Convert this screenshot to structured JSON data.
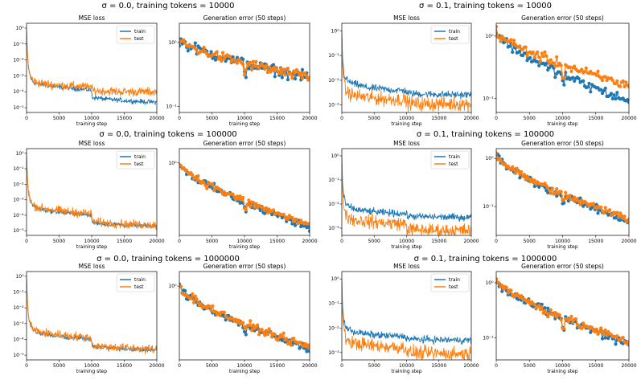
{
  "colors": {
    "train": "#1f77b4",
    "test": "#ff7f0e"
  },
  "chart_data": [
    {
      "type": "line",
      "row": 0,
      "col": 0,
      "group_title": "σ = 0.0, training tokens = 10000",
      "title": "MSE loss",
      "xlabel": "training step",
      "yscale": "log",
      "xlim": [
        0,
        20000
      ],
      "ylim": [
        5e-06,
        2
      ],
      "xticks": [
        0,
        5000,
        10000,
        15000,
        20000
      ],
      "yticks": [
        {
          "v": 1,
          "label": "10⁰"
        },
        {
          "v": 0.1,
          "label": "10⁻¹"
        },
        {
          "v": 0.01,
          "label": "10⁻²"
        },
        {
          "v": 0.001,
          "label": "10⁻³"
        },
        {
          "v": 0.0001,
          "label": "10⁻⁴"
        },
        {
          "v": 1e-05,
          "label": "10⁻⁵"
        }
      ],
      "legend": "top-right",
      "series": [
        {
          "name": "train",
          "x": [
            0,
            100,
            300,
            600,
            1000,
            2000,
            4000,
            6000,
            8000,
            9900,
            10100,
            12000,
            15000,
            18000,
            20000
          ],
          "y": [
            1,
            0.05,
            0.003,
            0.0008,
            0.0004,
            0.0003,
            0.00022,
            0.00018,
            0.00015,
            0.00013,
            4.5e-05,
            3.5e-05,
            2.8e-05,
            2.4e-05,
            2.2e-05
          ]
        },
        {
          "name": "test",
          "x": [
            0,
            100,
            300,
            600,
            1000,
            2000,
            4000,
            6000,
            8000,
            9900,
            10100,
            12000,
            15000,
            18000,
            20000
          ],
          "y": [
            1,
            0.05,
            0.003,
            0.0009,
            0.0005,
            0.00035,
            0.00028,
            0.00024,
            0.00022,
            0.0002,
            0.00012,
            0.00011,
            0.0001,
            0.0001,
            0.0001
          ]
        }
      ]
    },
    {
      "type": "line",
      "row": 0,
      "col": 1,
      "title": "Generation error (50 steps)",
      "xlabel": "training step",
      "yscale": "log",
      "xlim": [
        0,
        20000
      ],
      "ylim": [
        0.08,
        2
      ],
      "xticks": [
        0,
        5000,
        10000,
        15000,
        20000
      ],
      "yticks": [
        {
          "v": 1,
          "label": "10⁰"
        },
        {
          "v": 0.1,
          "label": "10⁻¹"
        }
      ],
      "markers": true,
      "series": [
        {
          "name": "train",
          "x": [
            0,
            20000
          ],
          "y": [
            1.1,
            0.28
          ],
          "x2": [
            10000,
            20000
          ],
          "y2": [
            0.2,
            0.12
          ],
          "nearx": 10000
        },
        {
          "name": "test",
          "x": [
            0,
            20000
          ],
          "y": [
            1.1,
            0.28
          ]
        }
      ]
    },
    {
      "type": "line",
      "row": 0,
      "col": 2,
      "group_title": "σ = 0.1, training tokens = 10000",
      "title": "MSE loss",
      "xlabel": "training step",
      "yscale": "log",
      "xlim": [
        0,
        20000
      ],
      "ylim": [
        0.0005,
        2
      ],
      "xticks": [
        0,
        5000,
        10000,
        15000,
        20000
      ],
      "yticks": [
        {
          "v": 1,
          "label": "10⁰"
        },
        {
          "v": 0.1,
          "label": "10⁻¹"
        },
        {
          "v": 0.01,
          "label": "10⁻²"
        },
        {
          "v": 0.001,
          "label": "10⁻³"
        }
      ],
      "legend": "top-right",
      "series": [
        {
          "name": "train",
          "x": [
            0,
            100,
            300,
            600,
            1000,
            2000,
            4000,
            6000,
            8000,
            9900,
            10100,
            12000,
            15000,
            18000,
            20000
          ],
          "y": [
            1,
            0.1,
            0.02,
            0.012,
            0.009,
            0.007,
            0.005,
            0.0045,
            0.004,
            0.0038,
            0.003,
            0.0028,
            0.0027,
            0.0026,
            0.0026
          ]
        },
        {
          "name": "test",
          "x": [
            0,
            100,
            300,
            600,
            1000,
            2000,
            4000,
            6000,
            8000,
            9900,
            10100,
            12000,
            15000,
            18000,
            20000
          ],
          "y": [
            1,
            0.05,
            0.008,
            0.004,
            0.003,
            0.0024,
            0.002,
            0.0018,
            0.0017,
            0.0016,
            0.0012,
            0.0011,
            0.0011,
            0.0011,
            0.0011
          ]
        }
      ]
    },
    {
      "type": "line",
      "row": 0,
      "col": 3,
      "title": "Generation error (50 steps)",
      "xlabel": "training step",
      "yscale": "log",
      "xlim": [
        0,
        20000
      ],
      "ylim": [
        0.06,
        1.6
      ],
      "xticks": [
        0,
        5000,
        10000,
        15000,
        20000
      ],
      "yticks": [
        {
          "v": 1,
          "label": "10⁰"
        },
        {
          "v": 0.1,
          "label": "10⁻¹"
        }
      ],
      "markers": true,
      "series": [
        {
          "name": "train",
          "x": [
            0,
            20000
          ],
          "y": [
            1.2,
            0.09
          ]
        },
        {
          "name": "test",
          "x": [
            0,
            20000
          ],
          "y": [
            1.2,
            0.16
          ]
        }
      ]
    },
    {
      "type": "line",
      "row": 1,
      "col": 0,
      "group_title": "σ = 0.0, training tokens = 100000",
      "title": "MSE loss",
      "xlabel": "training step",
      "yscale": "log",
      "xlim": [
        0,
        20000
      ],
      "ylim": [
        5e-06,
        2
      ],
      "xticks": [
        0,
        5000,
        10000,
        15000,
        20000
      ],
      "yticks": [
        {
          "v": 1,
          "label": "10⁰"
        },
        {
          "v": 0.1,
          "label": "10⁻¹"
        },
        {
          "v": 0.01,
          "label": "10⁻²"
        },
        {
          "v": 0.001,
          "label": "10⁻³"
        },
        {
          "v": 0.0001,
          "label": "10⁻⁴"
        },
        {
          "v": 1e-05,
          "label": "10⁻⁵"
        }
      ],
      "legend": "top-right",
      "series": [
        {
          "name": "train",
          "x": [
            0,
            100,
            300,
            600,
            1000,
            2000,
            4000,
            6000,
            8000,
            9900,
            10100,
            12000,
            15000,
            18000,
            20000
          ],
          "y": [
            1,
            0.05,
            0.003,
            0.0008,
            0.0004,
            0.00025,
            0.00018,
            0.00014,
            0.00012,
            0.0001,
            3.5e-05,
            2.8e-05,
            2.4e-05,
            2.1e-05,
            2e-05
          ]
        },
        {
          "name": "test",
          "x": [
            0,
            100,
            300,
            600,
            1000,
            2000,
            4000,
            6000,
            8000,
            9900,
            10100,
            12000,
            15000,
            18000,
            20000
          ],
          "y": [
            1,
            0.05,
            0.003,
            0.0009,
            0.00045,
            0.0003,
            0.00022,
            0.00018,
            0.00015,
            0.00013,
            4e-05,
            3.2e-05,
            2.7e-05,
            2.4e-05,
            2.2e-05
          ]
        }
      ]
    },
    {
      "type": "line",
      "row": 1,
      "col": 1,
      "title": "Generation error (50 steps)",
      "xlabel": "training step",
      "yscale": "log",
      "xlim": [
        0,
        20000
      ],
      "ylim": [
        0.03,
        2
      ],
      "xticks": [
        0,
        5000,
        10000,
        15000,
        20000
      ],
      "yticks": [
        {
          "v": 1,
          "label": "10⁰"
        }
      ],
      "markers": true,
      "series": [
        {
          "name": "train",
          "x": [
            0,
            20000
          ],
          "y": [
            1,
            0.045
          ]
        },
        {
          "name": "test",
          "x": [
            0,
            20000
          ],
          "y": [
            1,
            0.05
          ]
        }
      ]
    },
    {
      "type": "line",
      "row": 1,
      "col": 2,
      "group_title": "σ = 0.1, training tokens = 100000",
      "title": "MSE loss",
      "xlabel": "training step",
      "yscale": "log",
      "xlim": [
        0,
        20000
      ],
      "ylim": [
        0.0005,
        2
      ],
      "xticks": [
        0,
        5000,
        10000,
        15000,
        20000
      ],
      "yticks": [
        {
          "v": 1,
          "label": "10⁰"
        },
        {
          "v": 0.1,
          "label": "10⁻¹"
        },
        {
          "v": 0.01,
          "label": "10⁻²"
        },
        {
          "v": 0.001,
          "label": "10⁻³"
        }
      ],
      "legend": "top-right",
      "series": [
        {
          "name": "train",
          "x": [
            0,
            100,
            300,
            600,
            1000,
            2000,
            4000,
            6000,
            8000,
            9900,
            10100,
            12000,
            15000,
            18000,
            20000
          ],
          "y": [
            1,
            0.1,
            0.02,
            0.01,
            0.008,
            0.006,
            0.005,
            0.0045,
            0.0042,
            0.004,
            0.0032,
            0.003,
            0.0029,
            0.0028,
            0.0028
          ]
        },
        {
          "name": "test",
          "x": [
            0,
            100,
            300,
            600,
            1000,
            2000,
            4000,
            6000,
            8000,
            9900,
            10100,
            12000,
            15000,
            18000,
            20000
          ],
          "y": [
            1,
            0.05,
            0.008,
            0.004,
            0.0028,
            0.0022,
            0.0019,
            0.0017,
            0.0016,
            0.0015,
            0.0009,
            0.00085,
            0.0008,
            0.0008,
            0.0008
          ]
        }
      ]
    },
    {
      "type": "line",
      "row": 1,
      "col": 3,
      "title": "Generation error (50 steps)",
      "xlabel": "training step",
      "yscale": "log",
      "xlim": [
        0,
        20000
      ],
      "ylim": [
        0.025,
        1.6
      ],
      "xticks": [
        0,
        5000,
        10000,
        15000,
        20000
      ],
      "yticks": [
        {
          "v": 1,
          "label": "10⁰"
        },
        {
          "v": 0.1,
          "label": "10⁻¹"
        }
      ],
      "markers": true,
      "series": [
        {
          "name": "train",
          "x": [
            0,
            20000
          ],
          "y": [
            1.2,
            0.05
          ]
        },
        {
          "name": "test",
          "x": [
            0,
            20000
          ],
          "y": [
            1.2,
            0.055
          ]
        }
      ]
    },
    {
      "type": "line",
      "row": 2,
      "col": 0,
      "group_title": "σ = 0.0, training tokens = 1000000",
      "title": "MSE loss",
      "xlabel": "training step",
      "yscale": "log",
      "xlim": [
        0,
        20000
      ],
      "ylim": [
        5e-06,
        2
      ],
      "xticks": [
        0,
        5000,
        10000,
        15000,
        20000
      ],
      "yticks": [
        {
          "v": 1,
          "label": "10⁰"
        },
        {
          "v": 0.1,
          "label": "10⁻¹"
        },
        {
          "v": 0.01,
          "label": "10⁻²"
        },
        {
          "v": 0.001,
          "label": "10⁻³"
        },
        {
          "v": 0.0001,
          "label": "10⁻⁴"
        },
        {
          "v": 1e-05,
          "label": "10⁻⁵"
        }
      ],
      "legend": "top-right",
      "series": [
        {
          "name": "train",
          "x": [
            0,
            100,
            300,
            600,
            1000,
            2000,
            4000,
            6000,
            8000,
            9900,
            10100,
            12000,
            15000,
            18000,
            20000
          ],
          "y": [
            1,
            0.05,
            0.003,
            0.0008,
            0.0004,
            0.00025,
            0.00018,
            0.00014,
            0.00012,
            0.0001,
            3.5e-05,
            3e-05,
            2.6e-05,
            2.3e-05,
            2.1e-05
          ]
        },
        {
          "name": "test",
          "x": [
            0,
            100,
            300,
            600,
            1000,
            2000,
            4000,
            6000,
            8000,
            9900,
            10100,
            12000,
            15000,
            18000,
            20000
          ],
          "y": [
            1,
            0.05,
            0.003,
            0.0009,
            0.00045,
            0.0003,
            0.00022,
            0.00018,
            0.00015,
            0.00013,
            4e-05,
            3.4e-05,
            2.9e-05,
            2.5e-05,
            2.3e-05
          ]
        }
      ]
    },
    {
      "type": "line",
      "row": 2,
      "col": 1,
      "title": "Generation error (50 steps)",
      "xlabel": "training step",
      "yscale": "log",
      "xlim": [
        0,
        20000
      ],
      "ylim": [
        0.03,
        2
      ],
      "xticks": [
        0,
        5000,
        10000,
        15000,
        20000
      ],
      "yticks": [
        {
          "v": 1,
          "label": "10⁰"
        }
      ],
      "markers": true,
      "series": [
        {
          "name": "train",
          "x": [
            0,
            20000
          ],
          "y": [
            1,
            0.05
          ]
        },
        {
          "name": "test",
          "x": [
            0,
            20000
          ],
          "y": [
            1,
            0.055
          ]
        }
      ]
    },
    {
      "type": "line",
      "row": 2,
      "col": 2,
      "group_title": "σ = 0.1, training tokens = 1000000",
      "title": "MSE loss",
      "xlabel": "training step",
      "yscale": "log",
      "xlim": [
        0,
        20000
      ],
      "ylim": [
        0.0005,
        2
      ],
      "xticks": [
        0,
        5000,
        10000,
        15000,
        20000
      ],
      "yticks": [
        {
          "v": 1,
          "label": "10⁰"
        },
        {
          "v": 0.1,
          "label": "10⁻¹"
        },
        {
          "v": 0.01,
          "label": "10⁻²"
        },
        {
          "v": 0.001,
          "label": "10⁻³"
        }
      ],
      "legend": "top-right",
      "series": [
        {
          "name": "train",
          "x": [
            0,
            100,
            300,
            600,
            1000,
            2000,
            4000,
            6000,
            8000,
            9900,
            10100,
            12000,
            15000,
            18000,
            20000
          ],
          "y": [
            1,
            0.1,
            0.02,
            0.012,
            0.009,
            0.007,
            0.0055,
            0.005,
            0.0047,
            0.0045,
            0.0036,
            0.0034,
            0.0033,
            0.0032,
            0.0032
          ]
        },
        {
          "name": "test",
          "x": [
            0,
            100,
            300,
            600,
            1000,
            2000,
            4000,
            6000,
            8000,
            9900,
            10100,
            12000,
            15000,
            18000,
            20000
          ],
          "y": [
            1,
            0.05,
            0.008,
            0.004,
            0.003,
            0.0024,
            0.002,
            0.0018,
            0.0017,
            0.0016,
            0.001,
            0.00095,
            0.0009,
            0.0009,
            0.0009
          ]
        }
      ]
    },
    {
      "type": "line",
      "row": 2,
      "col": 3,
      "title": "Generation error (50 steps)",
      "xlabel": "training step",
      "yscale": "log",
      "xlim": [
        0,
        20000
      ],
      "ylim": [
        0.04,
        1.6
      ],
      "xticks": [
        0,
        5000,
        10000,
        15000,
        20000
      ],
      "yticks": [
        {
          "v": 1,
          "label": "10⁰"
        },
        {
          "v": 0.1,
          "label": "10⁻¹"
        }
      ],
      "markers": true,
      "series": [
        {
          "name": "train",
          "x": [
            0,
            20000
          ],
          "y": [
            1.2,
            0.08
          ]
        },
        {
          "name": "test",
          "x": [
            0,
            20000
          ],
          "y": [
            1.2,
            0.085
          ]
        }
      ]
    }
  ]
}
